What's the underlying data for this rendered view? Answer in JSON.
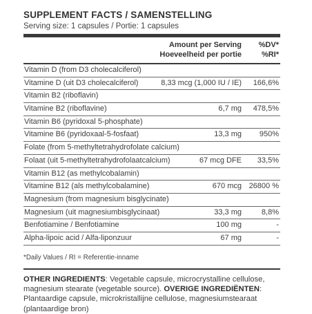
{
  "title": "SUPPLEMENT FACTS / SAMENSTELLING",
  "serving": "Serving size: 1 capsules / Portie: 1 capsules",
  "header": {
    "amount_line1": "Amount per Serving",
    "amount_line2": "Hoeveelheid per portie",
    "dv_line1": "%DV*",
    "dv_line2": "%RI*"
  },
  "rows": [
    {
      "name": "Vitamin D (from D3 cholecalciferol)",
      "amount": "",
      "percent": ""
    },
    {
      "name": "Vitamine D (uit D3 cholecalciferol)",
      "amount": "8,33 mcg (1,000 IU / IE)",
      "percent": "166,6%"
    },
    {
      "name": "Vitamin B2 (riboflavin)",
      "amount": "",
      "percent": ""
    },
    {
      "name": "Vitamine B2 (riboflavine)",
      "amount": "6,7 mg",
      "percent": "478,5%"
    },
    {
      "name": "Vitamin B6 (pyridoxal 5-phosphate)",
      "amount": "",
      "percent": ""
    },
    {
      "name": "Vitamine B6 (pyridoxaal-5-fosfaat)",
      "amount": "13,3 mg",
      "percent": "950%"
    },
    {
      "name": "Folate (from 5-methyltetrahydrofolate calcium)",
      "amount": "",
      "percent": ""
    },
    {
      "name": "Folaat (uit 5-methyltetrahydrofolaatcalcium)",
      "amount": "67 mcg DFE",
      "percent": "33,5%"
    },
    {
      "name": "Vitamin B12 (as methylcobalamin)",
      "amount": "",
      "percent": ""
    },
    {
      "name": "Vitamine B12 (als methylcobalamine)",
      "amount": "670 mcg",
      "percent": "26800 %"
    },
    {
      "name": "Magnesium (from magnesium bisglycinate)",
      "amount": "",
      "percent": ""
    },
    {
      "name": "Magnesium (uit magnesiumbisglycinaat)",
      "amount": "33,3 mg",
      "percent": "8,8%"
    },
    {
      "name": "Benfotiamine / Benfotiamine",
      "amount": "100 mg",
      "percent": "-"
    },
    {
      "name": "Alpha-lipoic acid / Alfa-liponzuur",
      "amount": "67 mg",
      "percent": "-"
    }
  ],
  "footnote": "*Daily Values / RI = Referentie-inname",
  "ingredients": {
    "label_en": "OTHER INGREDIENTS",
    "text_en": ": Vegetable capsule, microcrystalline cellulose, magnesium stearate (vegetable source). ",
    "label_nl": "OVERIGE INGREDIËNTEN",
    "text_nl": ": Plantaardige capsule, microkristallijne cellulose, magnesiumstearaat (plantaardige bron)"
  }
}
